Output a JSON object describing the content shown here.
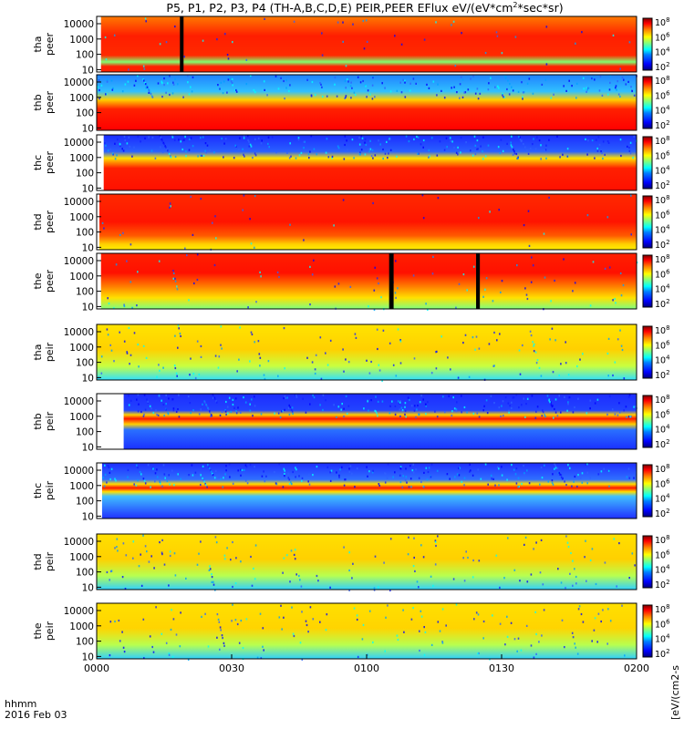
{
  "chart_data": {
    "type": "heatmap",
    "title": "P5, P1, P2, P3, P4 (TH-A,B,C,D,E) PEIR,PEER EFlux eV/(eV*cm²*sec*sr)",
    "title_parts": {
      "before": "P5, P1, P2, P3, P4 (TH-A,B,C,D,E) PEIR,PEER EFlux eV/(eV*cm",
      "sup": "2",
      "after": "*sec*sr)"
    },
    "time_axis": {
      "label": "hhmm",
      "date": "2016 Feb 03",
      "ticks": [
        "0000",
        "0030",
        "0100",
        "0130",
        "0200"
      ],
      "range": [
        "00:00",
        "02:00"
      ]
    },
    "y_axis": {
      "scale": "log",
      "range_eV": [
        7,
        30000
      ]
    },
    "colorbar": {
      "scale": "log",
      "label": "[eV/(cm2-s",
      "tick_labels": [
        {
          "base": "10",
          "exp": "8"
        },
        {
          "base": "10",
          "exp": "6"
        },
        {
          "base": "10",
          "exp": "4"
        },
        {
          "base": "10",
          "exp": "2"
        }
      ],
      "colors": [
        "#00007f",
        "#0000ff",
        "#0080ff",
        "#00ffff",
        "#80ff80",
        "#ffff00",
        "#ff8000",
        "#ff0000",
        "#7f0000"
      ]
    },
    "panels": [
      {
        "name": "tha peer",
        "probe": "tha",
        "species": "peer",
        "y_ticks": [
          "10000",
          "1000",
          "100",
          "10"
        ],
        "data_gaps": [
          [
            "00:18:30",
            "00:19:10"
          ]
        ]
      },
      {
        "name": "thb peer",
        "probe": "thb",
        "species": "peer",
        "y_ticks": [
          "10000",
          "1000",
          "100",
          "10"
        ],
        "data_gaps": []
      },
      {
        "name": "thc peer",
        "probe": "thc",
        "species": "peer",
        "y_ticks": [
          "10000",
          "1000",
          "100",
          "10"
        ],
        "data_gaps": []
      },
      {
        "name": "thd peer",
        "probe": "thd",
        "species": "peer",
        "y_ticks": [
          "10000",
          "1000",
          "100",
          "10"
        ],
        "data_gaps": []
      },
      {
        "name": "the peer",
        "probe": "the",
        "species": "peer",
        "y_ticks": [
          "10000",
          "1000",
          "100",
          "10"
        ],
        "data_gaps": [
          [
            "01:05:00",
            "01:06:00"
          ],
          [
            "01:24:20",
            "01:25:10"
          ]
        ]
      },
      {
        "name": "tha peir",
        "probe": "tha",
        "species": "peir",
        "y_ticks": [
          "10000",
          "1000",
          "100",
          "10"
        ],
        "data_gaps": []
      },
      {
        "name": "thb peir",
        "probe": "thb",
        "species": "peir",
        "y_ticks": [
          "10000",
          "1000",
          "100",
          "10"
        ],
        "data_gaps": []
      },
      {
        "name": "thc peir",
        "probe": "thc",
        "species": "peir",
        "y_ticks": [
          "10000",
          "1000",
          "100",
          "10"
        ],
        "data_gaps": []
      },
      {
        "name": "thd peir",
        "probe": "thd",
        "species": "peir",
        "y_ticks": [
          "10000",
          "1000",
          "100",
          "10"
        ],
        "data_gaps": []
      },
      {
        "name": "the peir",
        "probe": "the",
        "species": "peir",
        "y_ticks": [
          "10000",
          "1000",
          "100",
          "10"
        ],
        "data_gaps": []
      }
    ]
  }
}
